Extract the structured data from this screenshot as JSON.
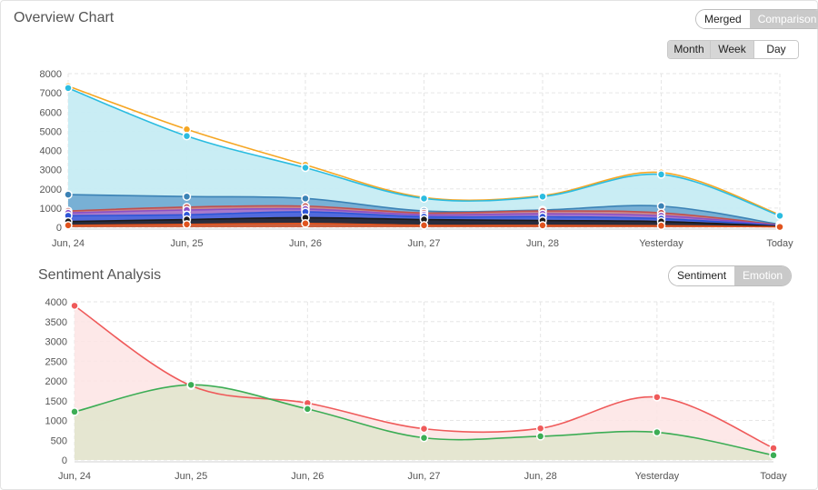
{
  "overview": {
    "title": "Overview Chart",
    "toggle": {
      "merged": "Merged",
      "comparison": "Comparison"
    },
    "range": {
      "month": "Month",
      "week": "Week",
      "day": "Day",
      "active": "Month"
    }
  },
  "sentiment": {
    "title": "Sentiment Analysis",
    "toggle": {
      "sentiment": "Sentiment",
      "emotion": "Emotion"
    }
  },
  "chart_data": [
    {
      "type": "area",
      "title": "Overview Chart",
      "categories": [
        "Jun, 24",
        "Jun, 25",
        "Jun, 26",
        "Jun, 27",
        "Jun, 28",
        "Yesterday",
        "Today"
      ],
      "ylim": [
        0,
        8000
      ],
      "yticks": [
        0,
        1000,
        2000,
        3000,
        4000,
        5000,
        6000,
        7000,
        8000
      ],
      "grid": true,
      "series": [
        {
          "color": "#f5a623",
          "fill": "none",
          "values": [
            7350,
            5100,
            3250,
            1550,
            1650,
            2850,
            650
          ]
        },
        {
          "color": "#2bbce0",
          "fill": "#c6ecf3",
          "values": [
            7250,
            4750,
            3100,
            1500,
            1600,
            2750,
            600
          ]
        },
        {
          "color": "#3b82b5",
          "fill": "#6aa5cf",
          "values": [
            1700,
            1600,
            1500,
            850,
            900,
            1100,
            150
          ]
        },
        {
          "color": "#c0504d",
          "fill": "#d78080",
          "values": [
            850,
            1050,
            1100,
            750,
            850,
            750,
            120
          ]
        },
        {
          "color": "#8b4fc4",
          "fill": "#a178d6",
          "values": [
            750,
            900,
            950,
            650,
            700,
            600,
            100
          ]
        },
        {
          "color": "#2e55d6",
          "fill": "#4267e0",
          "values": [
            600,
            650,
            800,
            550,
            550,
            450,
            80
          ]
        },
        {
          "color": "#1a1a1a",
          "fill": "#222222",
          "values": [
            300,
            400,
            500,
            400,
            350,
            300,
            50
          ]
        },
        {
          "color": "#e0531e",
          "fill": "#e86a3e",
          "values": [
            100,
            150,
            200,
            100,
            100,
            80,
            20
          ]
        }
      ]
    },
    {
      "type": "area",
      "title": "Sentiment Analysis",
      "categories": [
        "Jun, 24",
        "Jun, 25",
        "Jun, 26",
        "Jun, 27",
        "Jun, 28",
        "Yesterday",
        "Today"
      ],
      "ylim": [
        0,
        4000
      ],
      "yticks": [
        0,
        500,
        1000,
        1500,
        2000,
        2500,
        3000,
        3500,
        4000
      ],
      "grid": true,
      "series": [
        {
          "color": "#ef5a5a",
          "fill": "#fde4e4",
          "values": [
            3900,
            1880,
            1440,
            790,
            800,
            1590,
            300
          ]
        },
        {
          "color": "#3cad55",
          "fill": "#e1e5cc",
          "values": [
            1220,
            1900,
            1290,
            560,
            600,
            700,
            120
          ]
        }
      ]
    }
  ]
}
